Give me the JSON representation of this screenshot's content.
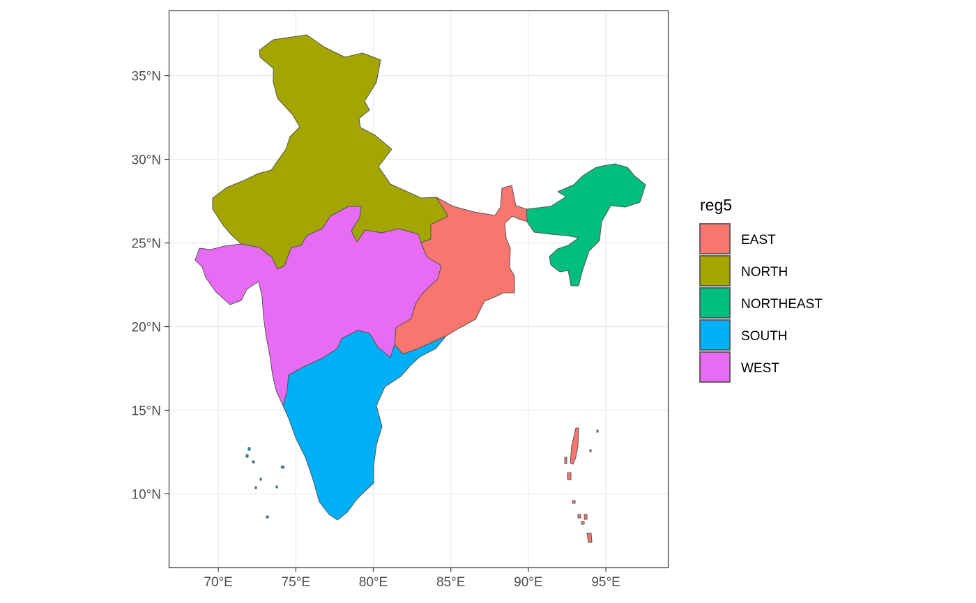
{
  "map": {
    "xlabel": "",
    "ylabel": "",
    "grid": true,
    "legend_position": "right",
    "lon_range": [
      66.8,
      99.0
    ],
    "lat_range": [
      5.6,
      38.9
    ],
    "lon_ticks": [
      {
        "value": 70,
        "label": "70°E"
      },
      {
        "value": 75,
        "label": "75°E"
      },
      {
        "value": 80,
        "label": "80°E"
      },
      {
        "value": 85,
        "label": "85°E"
      },
      {
        "value": 90,
        "label": "90°E"
      },
      {
        "value": 95,
        "label": "95°E"
      }
    ],
    "lat_ticks": [
      {
        "value": 10,
        "label": "10°N"
      },
      {
        "value": 15,
        "label": "15°N"
      },
      {
        "value": 20,
        "label": "20°N"
      },
      {
        "value": 25,
        "label": "25°N"
      },
      {
        "value": 30,
        "label": "30°N"
      },
      {
        "value": 35,
        "label": "35°N"
      }
    ]
  },
  "legend": {
    "title": "reg5",
    "items": [
      {
        "key": "east",
        "label": "EAST",
        "color": "#F8766D"
      },
      {
        "key": "north",
        "label": "NORTH",
        "color": "#A3A500"
      },
      {
        "key": "northeast",
        "label": "NORTHEAST",
        "color": "#00BF7D"
      },
      {
        "key": "south",
        "label": "SOUTH",
        "color": "#00B0F6"
      },
      {
        "key": "west",
        "label": "WEST",
        "color": "#E76BF3"
      }
    ]
  },
  "colors": {
    "border": "#555555",
    "gridline": "#ebebeb",
    "panel_border": "#333333"
  }
}
